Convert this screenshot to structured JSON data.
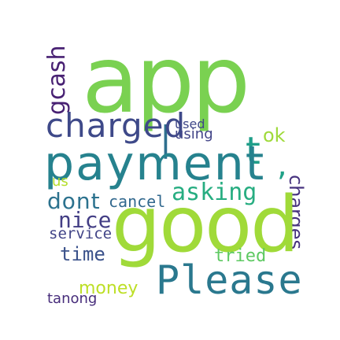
{
  "words": {
    "app": "app",
    "good": "good",
    "payment": "payment",
    "please": "Please",
    "charged": "charged",
    "gcash": "gcash",
    "asking": "asking",
    "dont": "dont",
    "cancel": "cancel",
    "nice": "nice",
    "service": "service",
    "time": "time",
    "tried": "tried",
    "money": "money",
    "tanong": "tanong",
    "used": "used",
    "using": "using",
    "ok": "ok",
    "charges": "charges",
    "us": "us",
    "t": "t",
    "pipe": "|",
    "comma": ","
  },
  "colors": {
    "app": "#7ad151",
    "good": "#a0da39",
    "payment": "#26828e",
    "please": "#2a788e",
    "charged": "#3e4989",
    "gcash": "#482173",
    "asking": "#27ad81",
    "dont": "#2c728e",
    "cancel": "#31688e",
    "nice": "#433e85",
    "service": "#414487",
    "time": "#3b528b",
    "tried": "#5ec962",
    "money": "#bddf26",
    "tanong": "#472d7b",
    "used": "#3f4788",
    "using": "#414487",
    "ok": "#9fda3a",
    "charges": "#46327e",
    "us": "#b5de2b",
    "t": "#1f9e89",
    "pipe": "#2e6f8e",
    "comma": "#1fa187"
  }
}
